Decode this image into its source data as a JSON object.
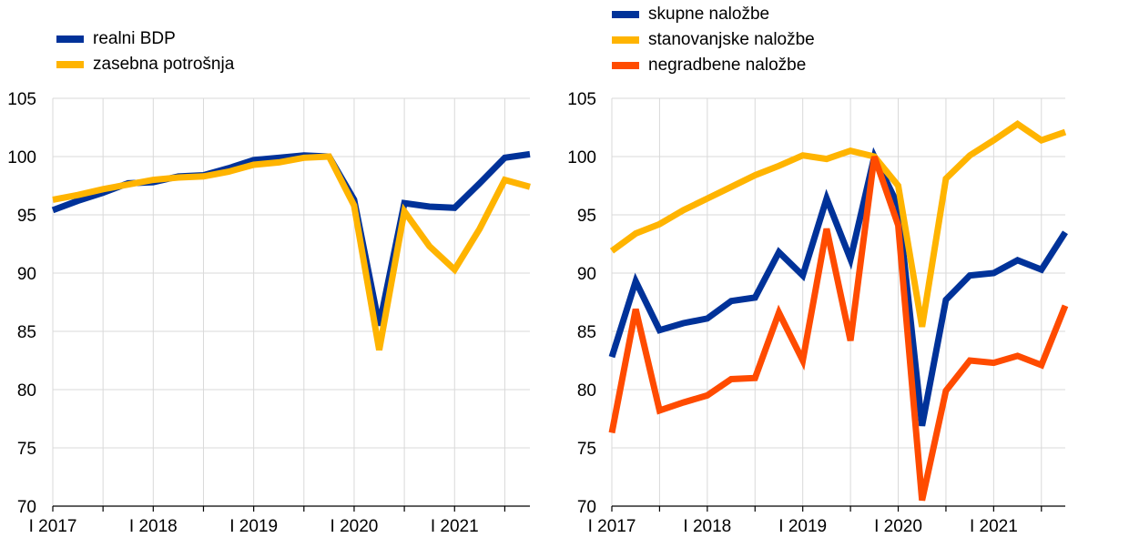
{
  "chart_data": [
    {
      "type": "line",
      "x": [
        "2017Q1",
        "2017Q2",
        "2017Q3",
        "2017Q4",
        "2018Q1",
        "2018Q2",
        "2018Q3",
        "2018Q4",
        "2019Q1",
        "2019Q2",
        "2019Q3",
        "2019Q4",
        "2020Q1",
        "2020Q2",
        "2020Q3",
        "2020Q4",
        "2021Q1",
        "2021Q2",
        "2021Q3",
        "2021Q4"
      ],
      "x_tick_labels": [
        "I 2017",
        "I 2018",
        "I 2019",
        "I 2020",
        "I 2021"
      ],
      "y_tick_labels": [
        "70",
        "75",
        "80",
        "85",
        "90",
        "95",
        "100",
        "105"
      ],
      "ylim": [
        70,
        105
      ],
      "grid": true,
      "legend_position": "top-left",
      "series": [
        {
          "name": "realni BDP",
          "color": "#003299",
          "values": [
            95.4,
            96.2,
            96.9,
            97.7,
            97.8,
            98.3,
            98.4,
            99.0,
            99.7,
            99.9,
            100.1,
            100.0,
            96.3,
            85.5,
            96.0,
            95.7,
            95.6,
            97.7,
            99.9,
            100.2
          ]
        },
        {
          "name": "zasebna potrošnja",
          "color": "#ffb400",
          "values": [
            96.3,
            96.7,
            97.2,
            97.6,
            98.0,
            98.2,
            98.3,
            98.7,
            99.3,
            99.5,
            99.9,
            100.0,
            95.8,
            83.4,
            95.3,
            92.3,
            90.3,
            93.8,
            98.0,
            97.4
          ]
        }
      ]
    },
    {
      "type": "line",
      "x": [
        "2017Q1",
        "2017Q2",
        "2017Q3",
        "2017Q4",
        "2018Q1",
        "2018Q2",
        "2018Q3",
        "2018Q4",
        "2019Q1",
        "2019Q2",
        "2019Q3",
        "2019Q4",
        "2020Q1",
        "2020Q2",
        "2020Q3",
        "2020Q4",
        "2021Q1",
        "2021Q2",
        "2021Q3",
        "2021Q4"
      ],
      "x_tick_labels": [
        "I 2017",
        "I 2018",
        "I 2019",
        "I 2020",
        "I 2021"
      ],
      "y_tick_labels": [
        "70",
        "75",
        "80",
        "85",
        "90",
        "95",
        "100",
        "105"
      ],
      "ylim": [
        70,
        105
      ],
      "grid": true,
      "legend_position": "top-left",
      "series": [
        {
          "name": "skupne naložbe",
          "color": "#003299",
          "values": [
            82.8,
            89.3,
            85.1,
            85.7,
            86.1,
            87.6,
            87.9,
            91.8,
            89.8,
            96.4,
            91.2,
            100.0,
            95.8,
            76.9,
            87.7,
            89.8,
            90.0,
            91.1,
            90.3,
            93.5
          ]
        },
        {
          "name": "stanovanjske naložbe",
          "color": "#ffb400",
          "values": [
            91.9,
            93.4,
            94.2,
            95.4,
            96.4,
            97.4,
            98.4,
            99.2,
            100.1,
            99.8,
            100.5,
            100.0,
            97.5,
            85.4,
            98.1,
            100.1,
            101.4,
            102.8,
            101.4,
            102.1
          ]
        },
        {
          "name": "negradbene naložbe",
          "color": "#ff4b00",
          "values": [
            76.3,
            86.9,
            78.2,
            78.9,
            79.5,
            80.9,
            81.0,
            86.6,
            82.5,
            93.8,
            84.2,
            100.0,
            94.1,
            70.5,
            79.9,
            82.5,
            82.3,
            82.9,
            82.1,
            87.2
          ]
        }
      ]
    }
  ]
}
